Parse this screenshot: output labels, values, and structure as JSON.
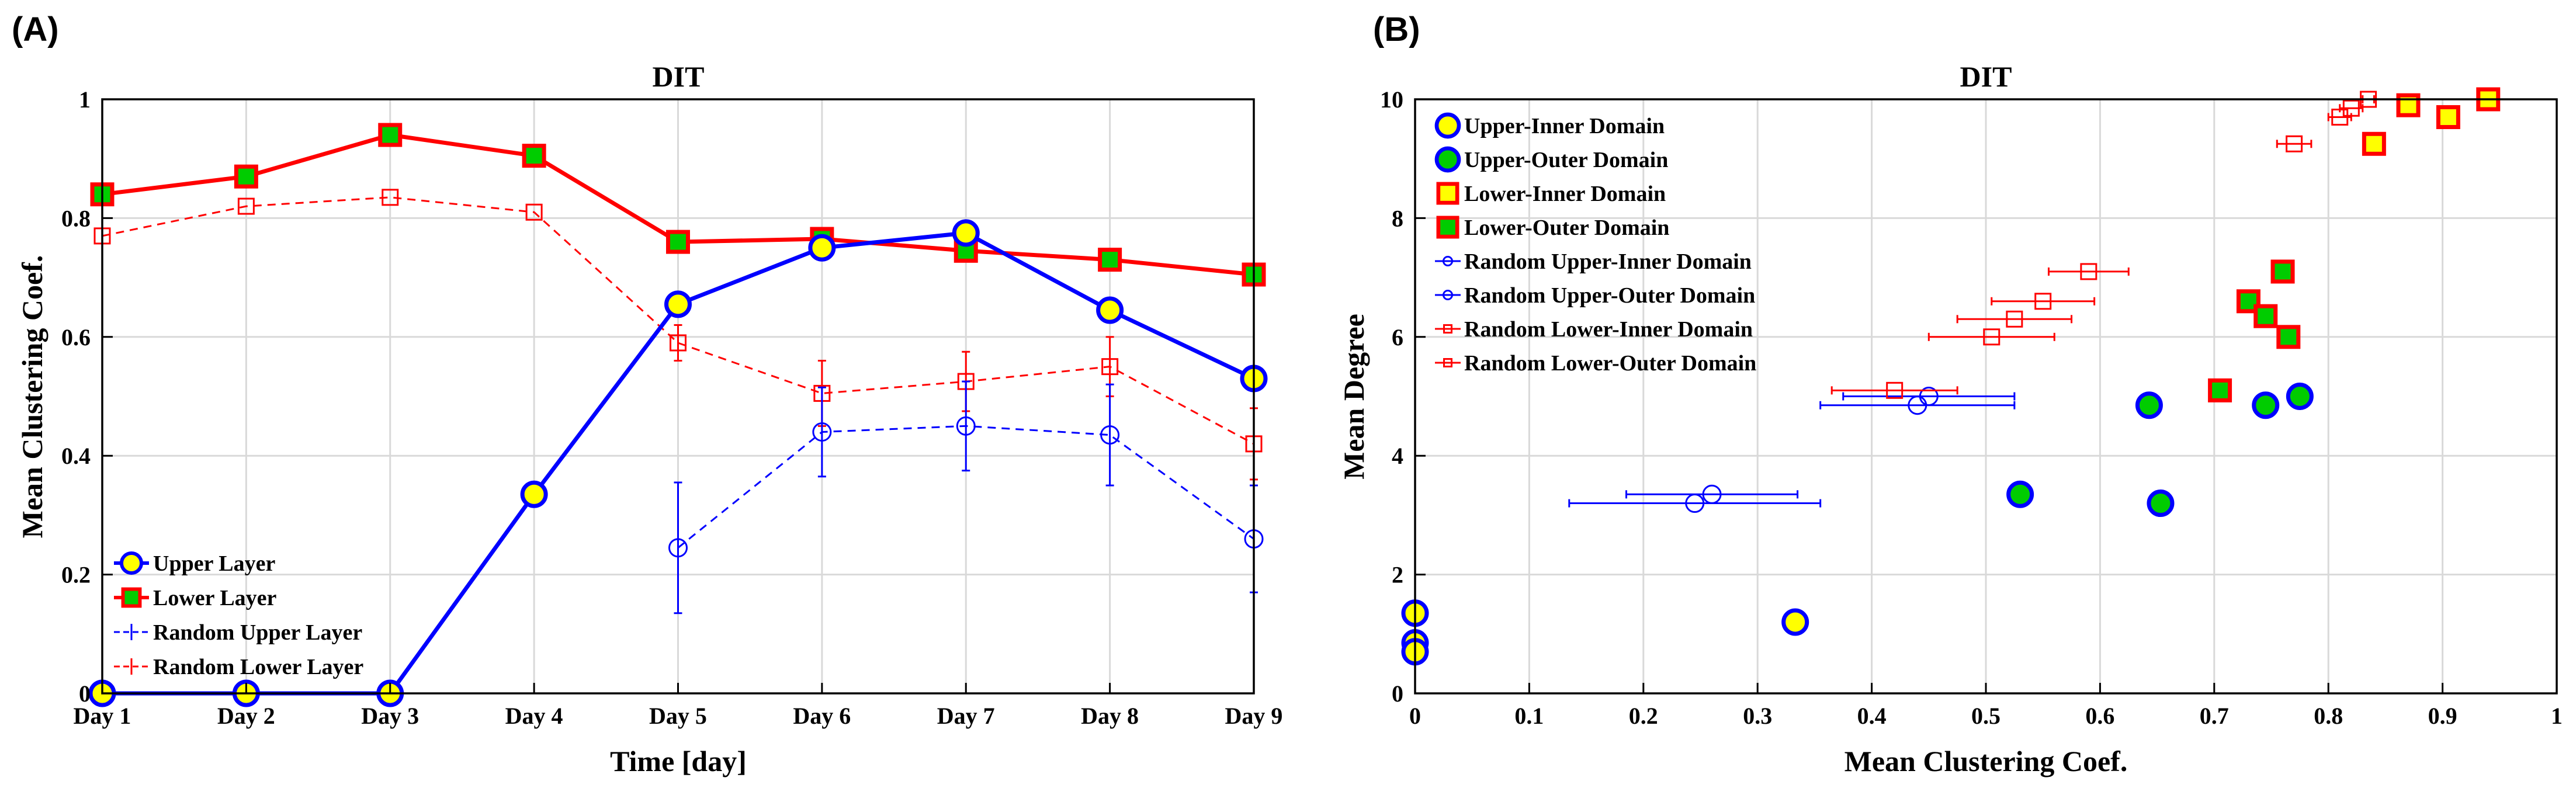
{
  "chart_data": [
    {
      "panel": "(A)",
      "type": "line",
      "title": "DIT",
      "xlabel": "Time [day]",
      "ylabel": "Mean Clustering Coef.",
      "categories": [
        "Day 1",
        "Day 2",
        "Day 3",
        "Day 4",
        "Day 5",
        "Day 6",
        "Day 7",
        "Day 8",
        "Day 9"
      ],
      "ylim": [
        0,
        1
      ],
      "yticks": [
        0,
        0.2,
        0.4,
        0.6,
        0.8,
        1
      ],
      "ytick_labels": [
        "0",
        "0.2",
        "0.4",
        "0.6",
        "0.8",
        "1"
      ],
      "grid": true,
      "legend_position": "bottom-left",
      "series": [
        {
          "name": "Upper Layer",
          "style": "solid",
          "marker": "circle",
          "color": "#0000ff",
          "fill": "#ffff00",
          "values": [
            0,
            0,
            0,
            0.335,
            0.655,
            0.75,
            0.775,
            0.645,
            0.53
          ]
        },
        {
          "name": "Lower Layer",
          "style": "solid",
          "marker": "square",
          "color": "#ff0000",
          "fill": "#00cc00",
          "values": [
            0.84,
            0.87,
            0.94,
            0.905,
            0.76,
            0.765,
            0.745,
            0.73,
            0.705
          ]
        },
        {
          "name": "Random Upper Layer",
          "style": "dashed",
          "marker": "open-circle",
          "color": "#0000ff",
          "values": [
            null,
            null,
            null,
            null,
            0.245,
            0.44,
            0.45,
            0.435,
            0.26
          ],
          "errors": [
            null,
            null,
            null,
            null,
            0.11,
            0.075,
            0.075,
            0.085,
            0.09
          ]
        },
        {
          "name": "Random Lower Layer",
          "style": "dashed",
          "marker": "open-square",
          "color": "#ff0000",
          "values": [
            0.77,
            0.82,
            0.835,
            0.81,
            0.59,
            0.505,
            0.525,
            0.55,
            0.42
          ],
          "errors": [
            0,
            0,
            0,
            0,
            0.03,
            0.055,
            0.05,
            0.05,
            0.06
          ]
        }
      ]
    },
    {
      "panel": "(B)",
      "type": "scatter",
      "title": "DIT",
      "xlabel": "Mean Clustering Coef.",
      "ylabel": "Mean Degree",
      "xlim": [
        0,
        1
      ],
      "ylim": [
        0,
        10
      ],
      "xticks": [
        0,
        0.1,
        0.2,
        0.3,
        0.4,
        0.5,
        0.6,
        0.7,
        0.8,
        0.9,
        1
      ],
      "xtick_labels": [
        "0",
        "0.1",
        "0.2",
        "0.3",
        "0.4",
        "0.5",
        "0.6",
        "0.7",
        "0.8",
        "0.9",
        "1"
      ],
      "yticks": [
        0,
        2,
        4,
        6,
        8,
        10
      ],
      "ytick_labels": [
        "0",
        "2",
        "4",
        "6",
        "8",
        "10"
      ],
      "grid": true,
      "legend_position": "top-left",
      "series": [
        {
          "name": "Upper-Inner Domain",
          "marker": "circle",
          "color": "#0000ff",
          "fill": "#ffff00",
          "points": [
            [
              0,
              1.35
            ],
            [
              0,
              0.85
            ],
            [
              0,
              0.7
            ],
            [
              0.333,
              1.2
            ]
          ]
        },
        {
          "name": "Upper-Outer Domain",
          "marker": "circle",
          "color": "#0000ff",
          "fill": "#00cc00",
          "points": [
            [
              0.53,
              3.35
            ],
            [
              0.653,
              3.2
            ],
            [
              0.643,
              4.85
            ],
            [
              0.745,
              4.85
            ],
            [
              0.775,
              5.0
            ]
          ]
        },
        {
          "name": "Lower-Inner Domain",
          "marker": "square",
          "color": "#ff0000",
          "fill": "#ffff00",
          "points": [
            [
              0.84,
              9.25
            ],
            [
              0.905,
              9.7
            ],
            [
              0.87,
              9.9
            ],
            [
              0.94,
              10.0
            ]
          ]
        },
        {
          "name": "Lower-Outer Domain",
          "marker": "square",
          "color": "#ff0000",
          "fill": "#00cc00",
          "points": [
            [
              0.705,
              5.1
            ],
            [
              0.73,
              6.6
            ],
            [
              0.745,
              6.35
            ],
            [
              0.76,
              7.1
            ],
            [
              0.765,
              6.0
            ]
          ]
        },
        {
          "name": "Random Upper-Inner Domain",
          "marker": "open-circle",
          "color": "#0000ff",
          "points": [],
          "xerr": []
        },
        {
          "name": "Random Upper-Outer Domain",
          "marker": "open-circle",
          "color": "#0000ff",
          "points": [
            [
              0.245,
              3.2
            ],
            [
              0.26,
              3.35
            ],
            [
              0.44,
              4.85
            ],
            [
              0.45,
              5.0
            ]
          ],
          "xerr": [
            0.11,
            0.075,
            0.085,
            0.075
          ]
        },
        {
          "name": "Random Lower-Inner Domain",
          "marker": "open-square",
          "color": "#ff0000",
          "points": [
            [
              0.77,
              9.25
            ],
            [
              0.81,
              9.7
            ],
            [
              0.82,
              9.85
            ],
            [
              0.835,
              10.0
            ]
          ],
          "xerr": [
            0.015,
            0.01,
            0.01,
            0.005
          ]
        },
        {
          "name": "Random Lower-Outer Domain",
          "marker": "open-square",
          "color": "#ff0000",
          "points": [
            [
              0.42,
              5.1
            ],
            [
              0.505,
              6.0
            ],
            [
              0.525,
              6.3
            ],
            [
              0.55,
              6.6
            ],
            [
              0.59,
              7.1
            ]
          ],
          "xerr": [
            0.055,
            0.055,
            0.05,
            0.045,
            0.035
          ]
        }
      ]
    }
  ]
}
